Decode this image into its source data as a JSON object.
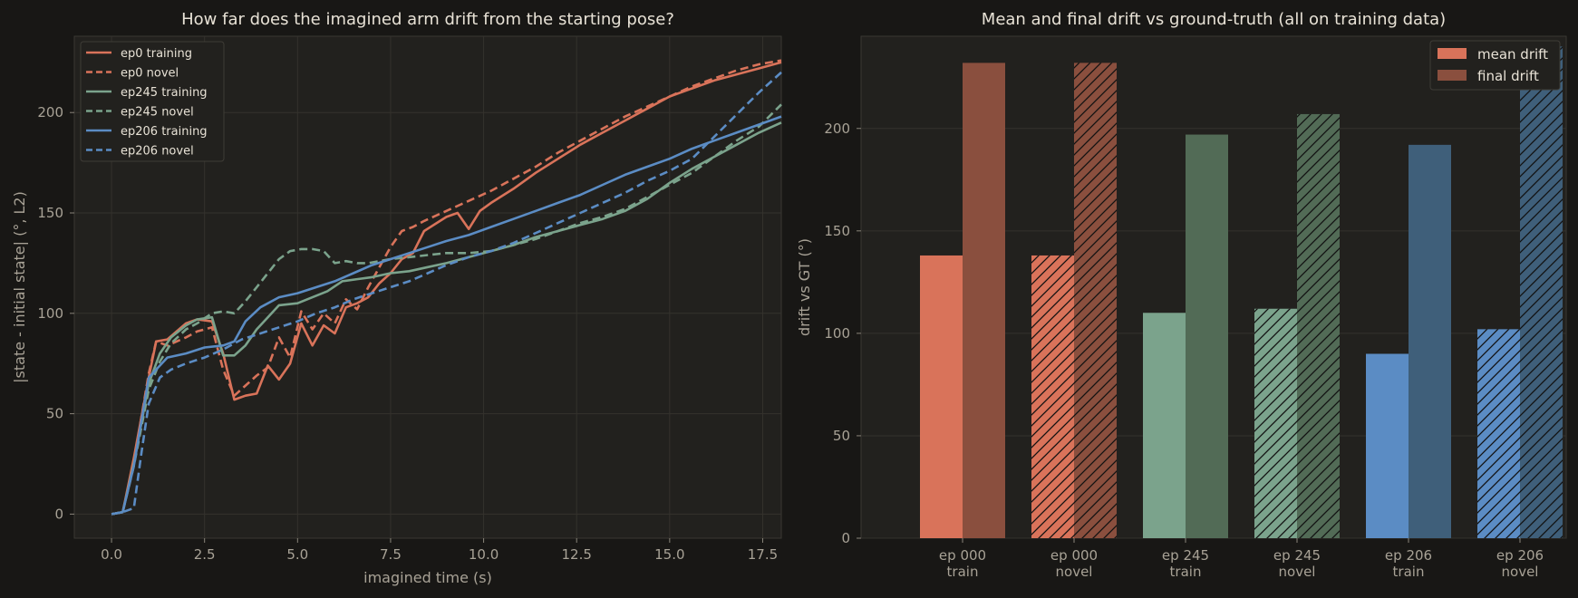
{
  "chart_data": [
    {
      "type": "line",
      "title": "How far does the imagined arm drift from the starting pose?",
      "xlabel": "imagined time (s)",
      "ylabel": "|state - initial state|  (°, L2)",
      "xlim": [
        -1.0,
        18.0
      ],
      "ylim": [
        -12,
        238
      ],
      "xticks": [
        0.0,
        2.5,
        5.0,
        7.5,
        10.0,
        12.5,
        15.0,
        17.5
      ],
      "xtick_labels": [
        "0.0",
        "2.5",
        "5.0",
        "7.5",
        "10.0",
        "12.5",
        "15.0",
        "17.5"
      ],
      "yticks": [
        0,
        50,
        100,
        150,
        200
      ],
      "ytick_labels": [
        "0",
        "50",
        "100",
        "150",
        "200"
      ],
      "grid": true,
      "legend_position": "top-left",
      "series": [
        {
          "name": "ep0 training",
          "color": "#d9735a",
          "dash": false,
          "x": [
            0,
            0.3,
            0.6,
            1.0,
            1.2,
            1.5,
            2.0,
            2.3,
            2.7,
            3.0,
            3.3,
            3.6,
            3.9,
            4.2,
            4.5,
            4.8,
            5.1,
            5.4,
            5.7,
            6.0,
            6.3,
            6.6,
            6.9,
            7.2,
            7.5,
            7.8,
            8.1,
            8.4,
            9.0,
            9.3,
            9.6,
            9.9,
            10.2,
            10.8,
            11.4,
            12.0,
            12.6,
            13.2,
            13.8,
            14.4,
            15.0,
            15.6,
            16.2,
            16.8,
            17.4,
            18.0
          ],
          "y": [
            0,
            1,
            28,
            68,
            86,
            87,
            95,
            97,
            96,
            80,
            57,
            59,
            60,
            74,
            67,
            75,
            95,
            84,
            94,
            90,
            103,
            105,
            108,
            115,
            120,
            127,
            130,
            141,
            148,
            150,
            142,
            151,
            155,
            162,
            170,
            177,
            184,
            190,
            196,
            202,
            208,
            212,
            216,
            219,
            222,
            225
          ]
        },
        {
          "name": "ep0 novel",
          "color": "#d9735a",
          "dash": true,
          "x": [
            0,
            0.3,
            0.6,
            1.0,
            1.2,
            1.5,
            2.0,
            2.3,
            2.7,
            3.0,
            3.3,
            3.6,
            3.9,
            4.2,
            4.5,
            4.8,
            5.1,
            5.4,
            5.7,
            6.0,
            6.3,
            6.6,
            6.9,
            7.2,
            7.5,
            7.8,
            8.1,
            8.4,
            9.0,
            9.6,
            10.2,
            10.8,
            11.4,
            12.0,
            12.6,
            13.2,
            13.8,
            14.4,
            15.0,
            15.6,
            16.2,
            16.8,
            17.4,
            18.0
          ],
          "y": [
            0,
            1,
            26,
            70,
            86,
            84,
            88,
            91,
            93,
            72,
            59,
            64,
            69,
            73,
            88,
            78,
            101,
            92,
            100,
            95,
            107,
            102,
            113,
            123,
            133,
            141,
            143,
            146,
            151,
            156,
            161,
            167,
            173,
            180,
            186,
            192,
            198,
            203,
            208,
            213,
            217,
            221,
            224,
            226
          ]
        },
        {
          "name": "ep245 training",
          "color": "#7ba38c",
          "dash": false,
          "x": [
            0,
            0.3,
            0.6,
            1.0,
            1.3,
            1.6,
            2.0,
            2.3,
            2.7,
            3.0,
            3.3,
            3.6,
            3.9,
            4.2,
            4.5,
            5.0,
            5.4,
            5.8,
            6.2,
            6.6,
            7.0,
            7.5,
            8.0,
            8.5,
            9.0,
            9.6,
            10.2,
            10.8,
            11.4,
            12.0,
            12.6,
            13.2,
            13.8,
            14.4,
            15.0,
            15.6,
            16.2,
            16.8,
            17.4,
            18.0
          ],
          "y": [
            0,
            1,
            25,
            65,
            80,
            88,
            94,
            97,
            98,
            79,
            79,
            84,
            92,
            98,
            104,
            105,
            108,
            111,
            116,
            117,
            118,
            120,
            121,
            123,
            125,
            128,
            131,
            134,
            138,
            141,
            144,
            147,
            151,
            157,
            165,
            172,
            178,
            184,
            190,
            195
          ]
        },
        {
          "name": "ep245 novel",
          "color": "#7ba38c",
          "dash": true,
          "x": [
            0,
            0.3,
            0.6,
            1.0,
            1.3,
            1.6,
            2.0,
            2.3,
            2.7,
            3.0,
            3.3,
            3.6,
            3.9,
            4.2,
            4.5,
            4.8,
            5.1,
            5.4,
            5.7,
            6.0,
            6.3,
            6.6,
            6.9,
            7.2,
            7.5,
            8.0,
            8.5,
            9.0,
            9.6,
            10.2,
            10.8,
            11.4,
            12.0,
            12.6,
            13.2,
            13.8,
            14.4,
            15.0,
            15.6,
            16.2,
            16.8,
            17.4,
            18.0
          ],
          "y": [
            0,
            1,
            24,
            62,
            76,
            85,
            92,
            95,
            100,
            101,
            100,
            106,
            113,
            120,
            127,
            131,
            132,
            132,
            131,
            125,
            126,
            125,
            125,
            126,
            127,
            128,
            129,
            130,
            130,
            131,
            134,
            137,
            141,
            145,
            148,
            152,
            158,
            164,
            170,
            178,
            186,
            193,
            204
          ]
        },
        {
          "name": "ep206 training",
          "color": "#5b8cc4",
          "dash": false,
          "x": [
            0,
            0.3,
            0.6,
            1.0,
            1.2,
            1.5,
            2.0,
            2.5,
            3.0,
            3.3,
            3.6,
            4.0,
            4.5,
            5.0,
            5.5,
            6.0,
            6.5,
            7.0,
            7.5,
            8.0,
            8.5,
            9.0,
            9.6,
            10.2,
            10.8,
            11.4,
            12.0,
            12.6,
            13.2,
            13.8,
            14.4,
            15.0,
            15.6,
            16.2,
            16.8,
            17.4,
            18.0
          ],
          "y": [
            0,
            1,
            24,
            68,
            72,
            78,
            80,
            83,
            84,
            86,
            96,
            103,
            108,
            110,
            113,
            116,
            120,
            124,
            127,
            130,
            133,
            136,
            139,
            143,
            147,
            151,
            155,
            159,
            164,
            169,
            173,
            177,
            182,
            186,
            190,
            194,
            198
          ]
        },
        {
          "name": "ep206 novel",
          "color": "#5b8cc4",
          "dash": true,
          "x": [
            0,
            0.3,
            0.6,
            0.8,
            1.0,
            1.3,
            1.6,
            2.0,
            2.5,
            3.0,
            3.5,
            4.0,
            4.5,
            5.0,
            5.5,
            6.0,
            6.5,
            7.0,
            7.5,
            8.0,
            8.5,
            9.0,
            9.6,
            10.2,
            10.8,
            11.4,
            12.0,
            12.6,
            13.2,
            13.8,
            14.4,
            15.0,
            15.6,
            16.2,
            16.8,
            17.4,
            18.0
          ],
          "y": [
            0,
            1,
            3,
            30,
            55,
            68,
            72,
            75,
            78,
            82,
            87,
            90,
            93,
            96,
            100,
            103,
            107,
            110,
            113,
            116,
            120,
            124,
            128,
            131,
            135,
            140,
            145,
            150,
            155,
            160,
            166,
            171,
            177,
            188,
            199,
            210,
            220
          ]
        }
      ]
    },
    {
      "type": "bar",
      "title": "Mean and final drift vs ground-truth (all on training data)",
      "xlabel": "",
      "ylabel": "drift vs GT  (°)",
      "ylim": [
        0,
        245
      ],
      "yticks": [
        0,
        50,
        100,
        150,
        200
      ],
      "ytick_labels": [
        "0",
        "50",
        "100",
        "150",
        "200"
      ],
      "legend_position": "top-right",
      "categories": [
        [
          "ep 000",
          "train"
        ],
        [
          "ep 000",
          "novel"
        ],
        [
          "ep 245",
          "train"
        ],
        [
          "ep 245",
          "novel"
        ],
        [
          "ep 206",
          "train"
        ],
        [
          "ep 206",
          "novel"
        ]
      ],
      "series": [
        {
          "name": "mean drift",
          "values": [
            138,
            138,
            110,
            112,
            90,
            102
          ]
        },
        {
          "name": "final drift",
          "values": [
            232,
            232,
            197,
            207,
            192,
            240
          ]
        }
      ],
      "colors": {
        "mean": [
          "#d9735a",
          "#d9735a",
          "#7ba38c",
          "#7ba38c",
          "#5b8cc4",
          "#5b8cc4"
        ],
        "final": [
          "#8a4f3e",
          "#8a4f3e",
          "#526b56",
          "#526b56",
          "#3f5f7a",
          "#3f5f7a"
        ]
      },
      "hatched": [
        false,
        true,
        false,
        true,
        false,
        true
      ]
    }
  ]
}
